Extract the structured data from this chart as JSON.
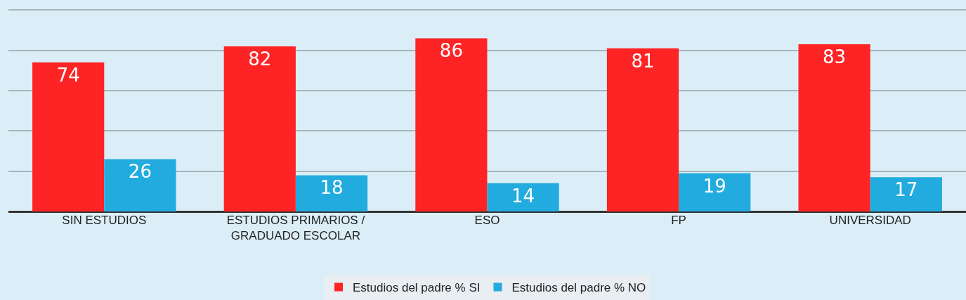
{
  "chart_data": {
    "type": "bar",
    "categories": [
      "SIN ESTUDIOS",
      "ESTUDIOS PRIMARIOS / GRADUADO ESCOLAR",
      "ESO",
      "FP",
      "UNIVERSIDAD"
    ],
    "series": [
      {
        "name": "Estudios del padre % SI",
        "color": "#fe2324",
        "values": [
          74,
          82,
          86,
          81,
          83
        ]
      },
      {
        "name": "Estudios del padre % NO",
        "color": "#22abde",
        "values": [
          26,
          18,
          14,
          19,
          17
        ]
      }
    ],
    "ylim": [
      0,
      105
    ],
    "yticks": [
      {
        "value": 0,
        "label": null
      },
      {
        "value": 20,
        "label": null
      },
      {
        "value": 40,
        "label": null
      },
      {
        "value": 60,
        "label": null
      },
      {
        "value": 80,
        "label": null
      },
      {
        "value": 100,
        "label": null
      }
    ],
    "grid": "y",
    "legend": "bottom",
    "data_labels": true,
    "tick_labels": "x"
  }
}
